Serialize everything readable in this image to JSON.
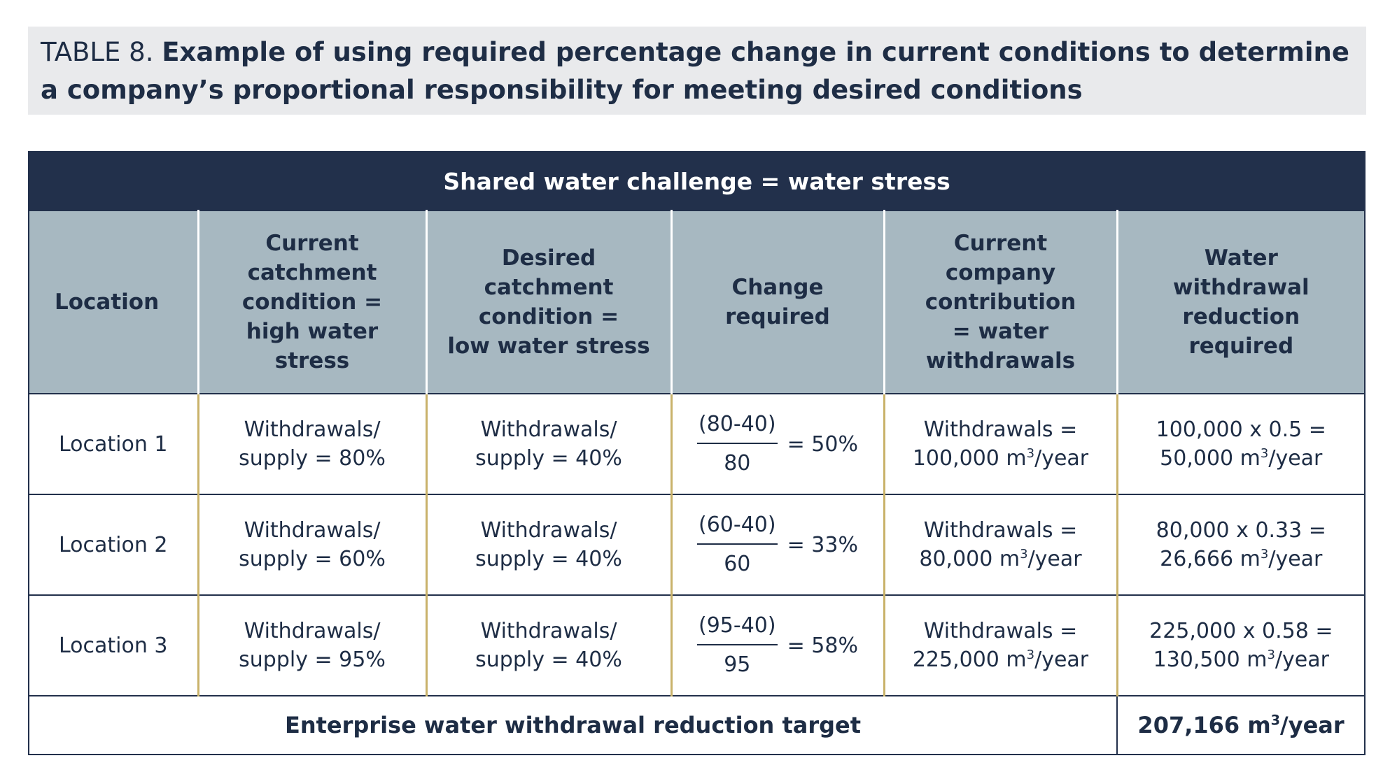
{
  "caption": {
    "label": "TABLE 8.",
    "title": "Example of using required percentage change in current conditions to determine a company’s proportional responsibility for meeting desired conditions"
  },
  "table": {
    "challenge": "Shared water challenge = water stress",
    "headers": [
      [
        "Location"
      ],
      [
        "Current",
        "catchment",
        "condition =",
        "high water",
        "stress"
      ],
      [
        "Desired",
        "catchment",
        "condition =",
        "low water stress"
      ],
      [
        "Change",
        "required"
      ],
      [
        "Current",
        "company",
        "contribution",
        "= water",
        "withdrawals"
      ],
      [
        "Water",
        "withdrawal",
        "reduction",
        "required"
      ]
    ],
    "rows": [
      {
        "location": "Location 1",
        "current_1": "Withdrawals/",
        "current_2": "supply = 80%",
        "desired_1": "Withdrawals/",
        "desired_2": "supply = 40%",
        "frac_num": "(80-40)",
        "frac_den": "80",
        "frac_result": "= 50%",
        "contrib_1": "Withdrawals =",
        "contrib_2a": "100,000 m",
        "contrib_2b": "/year",
        "reduction_1": "100,000 x 0.5 =",
        "reduction_2a": "50,000 m",
        "reduction_2b": "/year"
      },
      {
        "location": "Location 2",
        "current_1": "Withdrawals/",
        "current_2": "supply = 60%",
        "desired_1": "Withdrawals/",
        "desired_2": "supply = 40%",
        "frac_num": "(60-40)",
        "frac_den": "60",
        "frac_result": "= 33%",
        "contrib_1": "Withdrawals =",
        "contrib_2a": "80,000 m",
        "contrib_2b": "/year",
        "reduction_1": "80,000 x 0.33 =",
        "reduction_2a": "26,666 m",
        "reduction_2b": "/year"
      },
      {
        "location": "Location 3",
        "current_1": "Withdrawals/",
        "current_2": "supply = 95%",
        "desired_1": "Withdrawals/",
        "desired_2": "supply = 40%",
        "frac_num": "(95-40)",
        "frac_den": "95",
        "frac_result": "= 58%",
        "contrib_1": "Withdrawals =",
        "contrib_2a": "225,000 m",
        "contrib_2b": "/year",
        "reduction_1": "225,000 x 0.58 =",
        "reduction_2a": "130,500 m",
        "reduction_2b": "/year"
      }
    ],
    "superscript": "3",
    "total_label": "Enterprise water withdrawal reduction target",
    "total_value_a": "207,166 m",
    "total_value_b": "/year"
  },
  "colors": {
    "navy": "#22304b",
    "header_bg": "#a7b8c1",
    "caption_bg": "#e9eaec",
    "gold_divider": "#c9b26a"
  }
}
